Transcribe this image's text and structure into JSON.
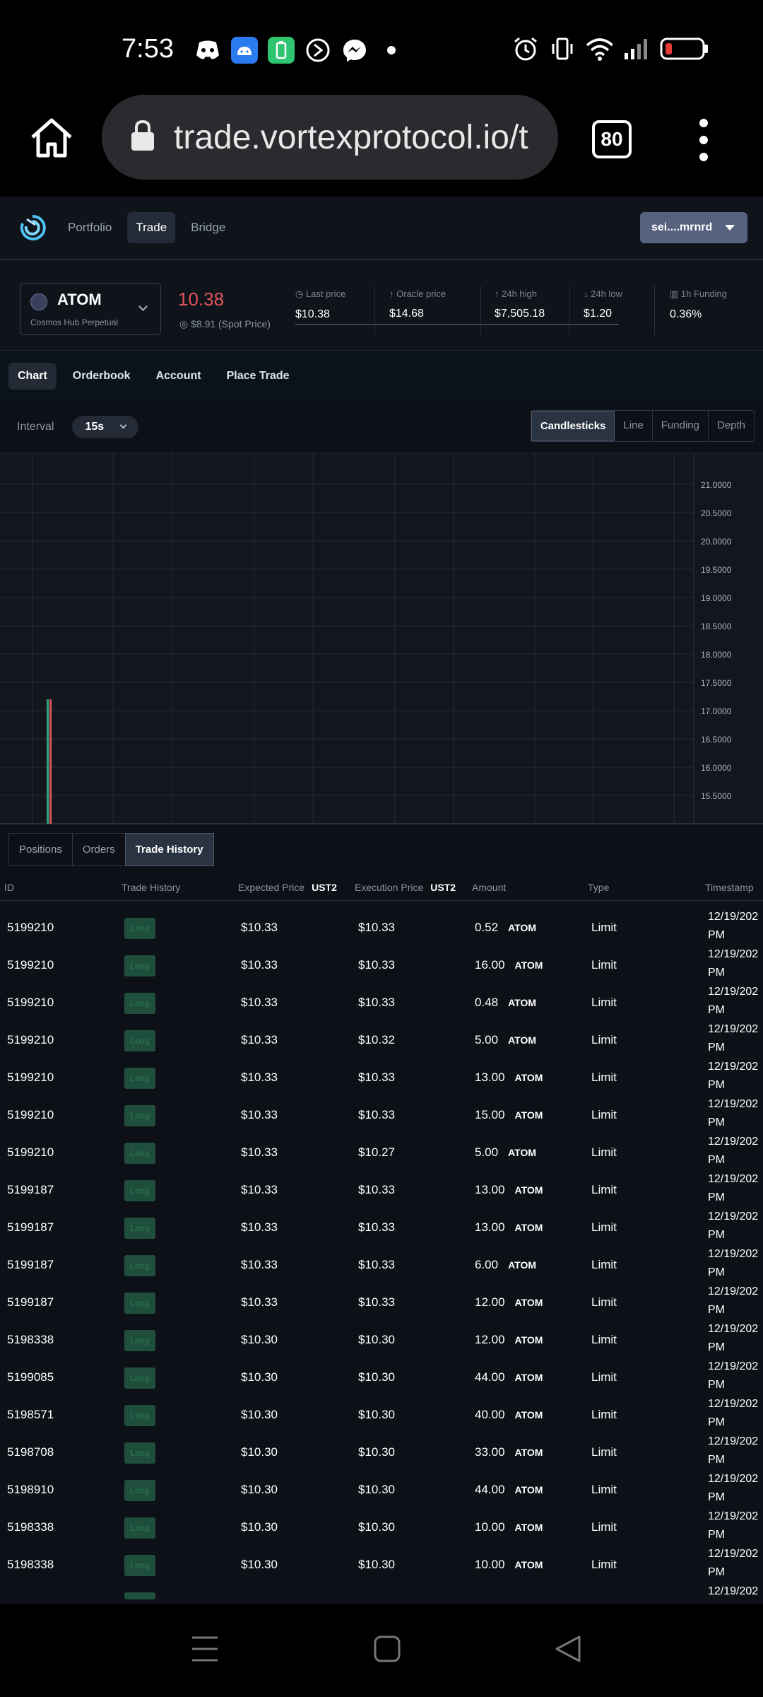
{
  "status": {
    "time": "7:53"
  },
  "browser": {
    "url": "trade.vortexprotocol.io/t",
    "tab_count": "80"
  },
  "nav": {
    "links": [
      "Portfolio",
      "Trade",
      "Bridge"
    ],
    "wallet": "sei....mrnrd"
  },
  "market": {
    "symbol": "ATOM",
    "subtitle": "Cosmos Hub Perpetual",
    "price": "10.38",
    "spot": "$8.91 (Spot Price)",
    "stats": [
      {
        "label": "Last price",
        "value": "$10.38"
      },
      {
        "label": "Oracle price",
        "value": "$14.68"
      },
      {
        "label": "24h high",
        "value": "$7,505.18"
      },
      {
        "label": "24h low",
        "value": "$1.20"
      },
      {
        "label": "1h Funding",
        "value": "0.36%"
      }
    ]
  },
  "subtabs": [
    "Chart",
    "Orderbook",
    "Account",
    "Place Trade"
  ],
  "chart_toolbar": {
    "interval_label": "Interval",
    "interval_value": "15s",
    "types": [
      "Candlesticks",
      "Line",
      "Funding",
      "Depth"
    ]
  },
  "chart_data": {
    "type": "candlestick",
    "y_ticks": [
      "21.0000",
      "20.5000",
      "20.0000",
      "19.5000",
      "19.0000",
      "18.5000",
      "18.0000",
      "17.5000",
      "17.0000",
      "16.5000",
      "16.0000",
      "15.5000"
    ],
    "ylim": [
      15.0,
      21.3
    ],
    "candles": [
      {
        "color": "#2fa37a",
        "high": 17.2,
        "low": 15.0
      },
      {
        "color": "#e0535c",
        "high": 17.2,
        "low": 15.0
      }
    ],
    "colors": {
      "up": "#2fa37a",
      "down": "#e0535c"
    }
  },
  "bottom_tabs": [
    "Positions",
    "Orders",
    "Trade History"
  ],
  "table": {
    "headers": {
      "id": "ID",
      "trade_history": "Trade History",
      "expected": "Expected Price",
      "expected_unit": "UST2",
      "execution": "Execution Price",
      "execution_unit": "UST2",
      "amount": "Amount",
      "type": "Type",
      "timestamp": "Timestamp"
    },
    "rows": [
      {
        "id": "5199210",
        "side": "Long",
        "expected": "$10.33",
        "execution": "$10.33",
        "amount": "0.52",
        "unit": "ATOM",
        "type": "Limit",
        "ts1": "12/19/202",
        "ts2": "PM"
      },
      {
        "id": "5199210",
        "side": "Long",
        "expected": "$10.33",
        "execution": "$10.33",
        "amount": "16.00",
        "unit": "ATOM",
        "type": "Limit",
        "ts1": "12/19/202",
        "ts2": "PM"
      },
      {
        "id": "5199210",
        "side": "Long",
        "expected": "$10.33",
        "execution": "$10.33",
        "amount": "0.48",
        "unit": "ATOM",
        "type": "Limit",
        "ts1": "12/19/202",
        "ts2": "PM"
      },
      {
        "id": "5199210",
        "side": "Long",
        "expected": "$10.33",
        "execution": "$10.32",
        "amount": "5.00",
        "unit": "ATOM",
        "type": "Limit",
        "ts1": "12/19/202",
        "ts2": "PM"
      },
      {
        "id": "5199210",
        "side": "Long",
        "expected": "$10.33",
        "execution": "$10.33",
        "amount": "13.00",
        "unit": "ATOM",
        "type": "Limit",
        "ts1": "12/19/202",
        "ts2": "PM"
      },
      {
        "id": "5199210",
        "side": "Long",
        "expected": "$10.33",
        "execution": "$10.33",
        "amount": "15.00",
        "unit": "ATOM",
        "type": "Limit",
        "ts1": "12/19/202",
        "ts2": "PM"
      },
      {
        "id": "5199210",
        "side": "Long",
        "expected": "$10.33",
        "execution": "$10.27",
        "amount": "5.00",
        "unit": "ATOM",
        "type": "Limit",
        "ts1": "12/19/202",
        "ts2": "PM"
      },
      {
        "id": "5199187",
        "side": "Long",
        "expected": "$10.33",
        "execution": "$10.33",
        "amount": "13.00",
        "unit": "ATOM",
        "type": "Limit",
        "ts1": "12/19/202",
        "ts2": "PM"
      },
      {
        "id": "5199187",
        "side": "Long",
        "expected": "$10.33",
        "execution": "$10.33",
        "amount": "13.00",
        "unit": "ATOM",
        "type": "Limit",
        "ts1": "12/19/202",
        "ts2": "PM"
      },
      {
        "id": "5199187",
        "side": "Long",
        "expected": "$10.33",
        "execution": "$10.33",
        "amount": "6.00",
        "unit": "ATOM",
        "type": "Limit",
        "ts1": "12/19/202",
        "ts2": "PM"
      },
      {
        "id": "5199187",
        "side": "Long",
        "expected": "$10.33",
        "execution": "$10.33",
        "amount": "12.00",
        "unit": "ATOM",
        "type": "Limit",
        "ts1": "12/19/202",
        "ts2": "PM"
      },
      {
        "id": "5198338",
        "side": "Long",
        "expected": "$10.30",
        "execution": "$10.30",
        "amount": "12.00",
        "unit": "ATOM",
        "type": "Limit",
        "ts1": "12/19/202",
        "ts2": "PM"
      },
      {
        "id": "5199085",
        "side": "Long",
        "expected": "$10.30",
        "execution": "$10.30",
        "amount": "44.00",
        "unit": "ATOM",
        "type": "Limit",
        "ts1": "12/19/202",
        "ts2": "PM"
      },
      {
        "id": "5198571",
        "side": "Long",
        "expected": "$10.30",
        "execution": "$10.30",
        "amount": "40.00",
        "unit": "ATOM",
        "type": "Limit",
        "ts1": "12/19/202",
        "ts2": "PM"
      },
      {
        "id": "5198708",
        "side": "Long",
        "expected": "$10.30",
        "execution": "$10.30",
        "amount": "33.00",
        "unit": "ATOM",
        "type": "Limit",
        "ts1": "12/19/202",
        "ts2": "PM"
      },
      {
        "id": "5198910",
        "side": "Long",
        "expected": "$10.30",
        "execution": "$10.30",
        "amount": "44.00",
        "unit": "ATOM",
        "type": "Limit",
        "ts1": "12/19/202",
        "ts2": "PM"
      },
      {
        "id": "5198338",
        "side": "Long",
        "expected": "$10.30",
        "execution": "$10.30",
        "amount": "10.00",
        "unit": "ATOM",
        "type": "Limit",
        "ts1": "12/19/202",
        "ts2": "PM"
      },
      {
        "id": "5198338",
        "side": "Long",
        "expected": "$10.30",
        "execution": "$10.30",
        "amount": "10.00",
        "unit": "ATOM",
        "type": "Limit",
        "ts1": "12/19/202",
        "ts2": "PM"
      }
    ],
    "partial_row_ts": "12/19/202"
  },
  "icons": {
    "status_left": [
      "discord-icon",
      "android-icon",
      "battery-saver-icon",
      "sync-icon",
      "messenger-icon",
      "dot-icon"
    ],
    "status_right": [
      "alarm-icon",
      "vibrate-icon",
      "wifi-icon",
      "signal-icon",
      "battery-low-icon"
    ]
  }
}
